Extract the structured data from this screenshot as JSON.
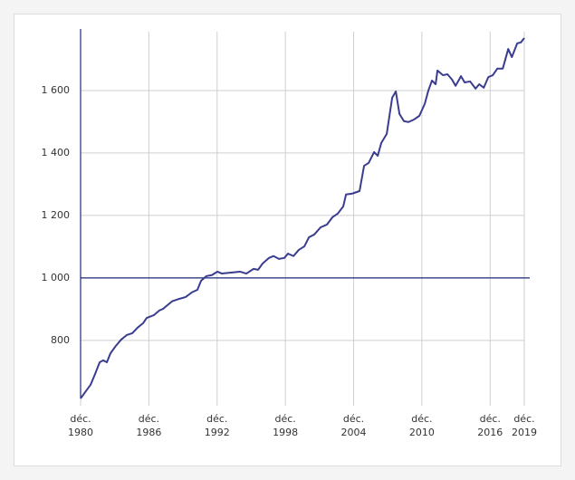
{
  "chart_data": {
    "type": "line",
    "x": [
      1980.92,
      1981.4,
      1981.8,
      1982.2,
      1982.6,
      1982.91,
      1983.23,
      1983.55,
      1984.03,
      1984.5,
      1984.98,
      1985.46,
      1985.94,
      1986.41,
      1986.73,
      1987.37,
      1987.85,
      1988.17,
      1988.56,
      1988.96,
      1989.6,
      1990.16,
      1990.71,
      1991.19,
      1991.51,
      1991.99,
      1992.46,
      1992.94,
      1993.34,
      1994.14,
      1994.93,
      1995.49,
      1996.13,
      1996.52,
      1996.92,
      1997.48,
      1997.88,
      1998.36,
      1998.83,
      1999.15,
      1999.63,
      2000.11,
      2000.59,
      2000.99,
      2001.46,
      2002.02,
      2002.58,
      2003.05,
      2003.53,
      2004.01,
      2004.25,
      2004.8,
      2005.44,
      2005.84,
      2006.24,
      2006.72,
      2007.04,
      2007.35,
      2007.83,
      2008.31,
      2008.63,
      2008.95,
      2009.34,
      2009.74,
      2010.22,
      2010.7,
      2011.17,
      2011.49,
      2011.81,
      2012.13,
      2012.29,
      2012.77,
      2013.17,
      2013.57,
      2013.88,
      2014.36,
      2014.68,
      2015.16,
      2015.64,
      2015.96,
      2016.36,
      2016.76,
      2017.15,
      2017.55,
      2018.03,
      2018.51,
      2018.83,
      2019.3,
      2019.62,
      2019.92
    ],
    "series": [
      {
        "color": "#3a3d8f",
        "values": [
          614,
          638,
          658,
          693,
          730,
          736,
          730,
          759,
          783,
          803,
          817,
          823,
          841,
          855,
          872,
          881,
          896,
          901,
          913,
          925,
          933,
          939,
          954,
          962,
          991,
          1006,
          1009,
          1020,
          1014,
          1017,
          1020,
          1014,
          1029,
          1026,
          1046,
          1064,
          1070,
          1061,
          1064,
          1078,
          1070,
          1090,
          1101,
          1130,
          1139,
          1162,
          1171,
          1194,
          1206,
          1229,
          1267,
          1270,
          1278,
          1359,
          1368,
          1403,
          1391,
          1432,
          1461,
          1577,
          1597,
          1525,
          1502,
          1499,
          1507,
          1519,
          1557,
          1600,
          1632,
          1620,
          1664,
          1649,
          1652,
          1635,
          1615,
          1646,
          1626,
          1629,
          1606,
          1620,
          1609,
          1643,
          1649,
          1670,
          1670,
          1733,
          1707,
          1751,
          1754,
          1768
        ]
      }
    ],
    "xlim": [
      1980.92,
      2020.4
    ],
    "xticks": [
      {
        "value": 1980.92,
        "label": "déc. 1980"
      },
      {
        "value": 1986.92,
        "label": "déc. 1986"
      },
      {
        "value": 1992.92,
        "label": "déc. 1992"
      },
      {
        "value": 1998.92,
        "label": "déc. 1998"
      },
      {
        "value": 2004.92,
        "label": "déc. 2004"
      },
      {
        "value": 2010.92,
        "label": "déc. 2010"
      },
      {
        "value": 2016.92,
        "label": "déc. 2016"
      },
      {
        "value": 2019.92,
        "label": "déc. 2019"
      }
    ],
    "ylim": [
      614,
      1797
    ],
    "yticks": [
      800,
      {
        "value": 1000,
        "label": "1 000"
      },
      {
        "value": 1200,
        "label": "1 200"
      },
      {
        "value": 1400,
        "label": "1 400"
      },
      {
        "value": 1600,
        "label": "1 600"
      }
    ],
    "reference_line": 1000,
    "reference_color": "#1f2a7a",
    "grid": true
  }
}
